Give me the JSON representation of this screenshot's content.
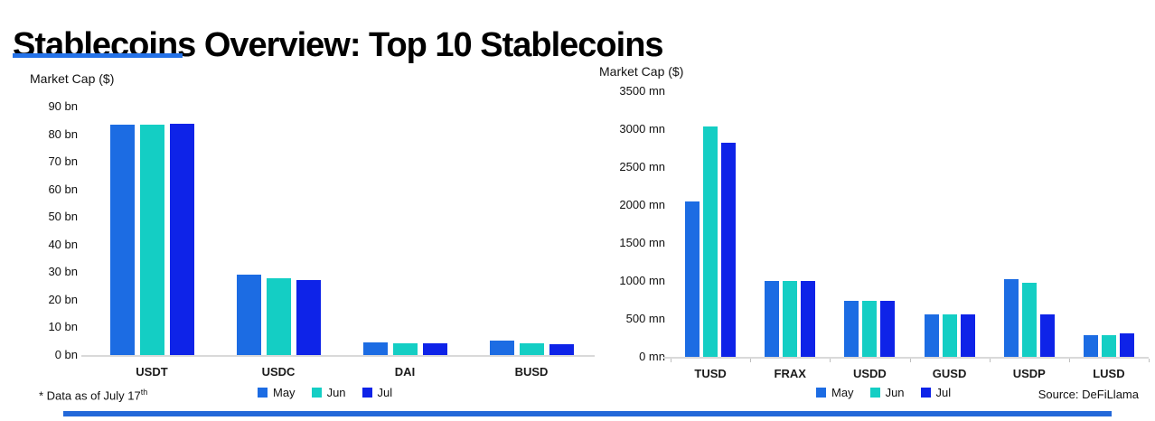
{
  "page": {
    "title": "Stablecoins Overview: Top 10 Stablecoins",
    "footnote": {
      "text": "* Data as of July 17",
      "superscript": "th"
    },
    "source": "Source: DeFiLlama"
  },
  "colors": {
    "may_blue": "#1C6CE3",
    "jun_teal": "#14CEC4",
    "jul_blue": "#0E23E8",
    "title_underline": "#2472E8",
    "bottom_bar": "#2368D9",
    "axis_line": "#D9D9D9"
  },
  "legend": {
    "items": [
      {
        "label": "May",
        "color": "#1C6CE3"
      },
      {
        "label": "Jun",
        "color": "#14CEC4"
      },
      {
        "label": "Jul",
        "color": "#0E23E8"
      }
    ]
  },
  "chart_data": [
    {
      "type": "bar",
      "title": "Market Cap ($)",
      "ylabel": "Market Cap ($)",
      "unit": "bn",
      "categories": [
        "USDT",
        "USDC",
        "DAI",
        "BUSD"
      ],
      "series": [
        {
          "name": "May",
          "color": "#1C6CE3",
          "values": [
            83.3,
            29.0,
            4.6,
            5.2
          ]
        },
        {
          "name": "Jun",
          "color": "#14CEC4",
          "values": [
            83.6,
            27.7,
            4.3,
            4.1
          ]
        },
        {
          "name": "Jul",
          "color": "#0E23E8",
          "values": [
            83.9,
            27.1,
            4.3,
            3.8
          ]
        }
      ],
      "ylim": [
        0,
        90
      ],
      "ytick_step": 10,
      "grid": false,
      "legend_position": "bottom"
    },
    {
      "type": "bar",
      "title": "Market Cap ($)",
      "ylabel": "Market Cap ($)",
      "unit": "mn",
      "categories": [
        "TUSD",
        "FRAX",
        "USDD",
        "GUSD",
        "USDP",
        "LUSD"
      ],
      "series": [
        {
          "name": "May",
          "color": "#1C6CE3",
          "values": [
            2050,
            1000,
            740,
            560,
            1020,
            280
          ]
        },
        {
          "name": "Jun",
          "color": "#14CEC4",
          "values": [
            3030,
            1005,
            735,
            555,
            980,
            290
          ]
        },
        {
          "name": "Jul",
          "color": "#0E23E8",
          "values": [
            2820,
            1000,
            735,
            560,
            560,
            305
          ]
        }
      ],
      "ylim": [
        0,
        3500
      ],
      "ytick_step": 500,
      "grid": false,
      "legend_position": "bottom"
    }
  ]
}
